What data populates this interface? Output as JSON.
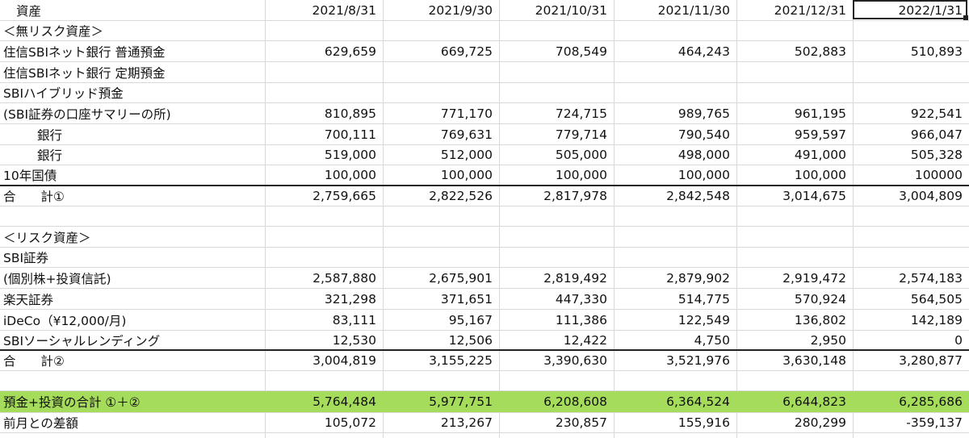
{
  "header": {
    "title": "資産",
    "dates": [
      "2021/8/31",
      "2021/9/30",
      "2021/10/31",
      "2021/11/30",
      "2021/12/31",
      "2022/1/31"
    ]
  },
  "rows": [
    {
      "label": "＜無リスク資産＞",
      "values": [
        "",
        "",
        "",
        "",
        "",
        ""
      ]
    },
    {
      "label": "住信SBIネット銀行 普通預金",
      "values": [
        "629,659",
        "669,725",
        "708,549",
        "464,243",
        "502,883",
        "510,893"
      ]
    },
    {
      "label": "住信SBIネット銀行 定期預金",
      "values": [
        "",
        "",
        "",
        "",
        "",
        ""
      ]
    },
    {
      "label": "SBIハイブリッド預金",
      "values": [
        "",
        "",
        "",
        "",
        "",
        ""
      ]
    },
    {
      "label": "(SBI証券の口座サマリーの所)",
      "values": [
        "810,895",
        "771,170",
        "724,715",
        "989,765",
        "961,195",
        "922,541"
      ]
    },
    {
      "label": "銀行",
      "values": [
        "700,111",
        "769,631",
        "779,714",
        "790,540",
        "959,597",
        "966,047"
      ]
    },
    {
      "label": "銀行",
      "values": [
        "519,000",
        "512,000",
        "505,000",
        "498,000",
        "491,000",
        "505,328"
      ]
    },
    {
      "label": "10年国債",
      "values": [
        "100,000",
        "100,000",
        "100,000",
        "100,000",
        "100,000",
        "100000"
      ]
    },
    {
      "label": "合　　計①",
      "values": [
        "2,759,665",
        "2,822,526",
        "2,817,978",
        "2,842,548",
        "3,014,675",
        "3,004,809"
      ]
    },
    {
      "label": "",
      "values": [
        "",
        "",
        "",
        "",
        "",
        ""
      ]
    },
    {
      "label": "＜リスク資産＞",
      "values": [
        "",
        "",
        "",
        "",
        "",
        ""
      ]
    },
    {
      "label": "SBI証券",
      "values": [
        "",
        "",
        "",
        "",
        "",
        ""
      ]
    },
    {
      "label": "(個別株+投資信託)",
      "values": [
        "2,587,880",
        "2,675,901",
        "2,819,492",
        "2,879,902",
        "2,919,472",
        "2,574,183"
      ]
    },
    {
      "label": "楽天証券",
      "values": [
        "321,298",
        "371,651",
        "447,330",
        "514,775",
        "570,924",
        "564,505"
      ]
    },
    {
      "label": "iDeCo（¥12,000/月)",
      "values": [
        "83,111",
        "95,167",
        "111,386",
        "122,549",
        "136,802",
        "142,189"
      ]
    },
    {
      "label": "SBIソーシャルレンディング",
      "values": [
        "12,530",
        "12,506",
        "12,422",
        "4,750",
        "2,950",
        "0"
      ]
    },
    {
      "label": "合　　計②",
      "values": [
        "3,004,819",
        "3,155,225",
        "3,390,630",
        "3,521,976",
        "3,630,148",
        "3,280,877"
      ]
    },
    {
      "label": "",
      "values": [
        "",
        "",
        "",
        "",
        "",
        ""
      ]
    },
    {
      "label": "預金+投資の合計 ①＋②",
      "values": [
        "5,764,484",
        "5,977,751",
        "6,208,608",
        "6,364,524",
        "6,644,823",
        "6,285,686"
      ]
    },
    {
      "label": "前月との差額",
      "values": [
        "105,072",
        "213,267",
        "230,857",
        "155,916",
        "280,299",
        "-359,137"
      ]
    }
  ],
  "colors": {
    "grand_total_fill": "#a6dc5b",
    "grid": "#d9d9d9"
  }
}
